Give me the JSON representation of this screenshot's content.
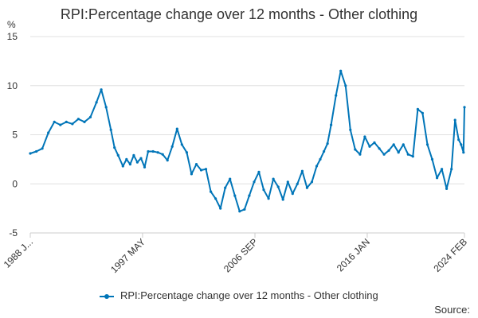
{
  "chart_data": {
    "type": "line",
    "title": "RPI:Percentage change over 12 months - Other clothing",
    "ylabel": "%",
    "ylim": [
      -5,
      15
    ],
    "yticks": [
      -5,
      0,
      5,
      10,
      15
    ],
    "xlim": [
      1988.0,
      2024.08
    ],
    "xticks": [
      {
        "x": 1988.0,
        "label": "1988 J..."
      },
      {
        "x": 1997.33,
        "label": "1997 MAY"
      },
      {
        "x": 2006.67,
        "label": "2006 SEP"
      },
      {
        "x": 2016.0,
        "label": "2016 JAN"
      },
      {
        "x": 2024.08,
        "label": "2024 FEB"
      }
    ],
    "grid": true,
    "legend_position": "bottom",
    "color": "#0075b8",
    "series": [
      {
        "name": "RPI:Percentage change over 12 months - Other clothing",
        "x": [
          1988.0,
          1988.5,
          1989.0,
          1989.5,
          1990.0,
          1990.5,
          1991.0,
          1991.5,
          1992.0,
          1992.5,
          1993.0,
          1993.5,
          1993.9,
          1994.3,
          1994.7,
          1995.0,
          1995.3,
          1995.7,
          1996.0,
          1996.3,
          1996.6,
          1996.9,
          1997.2,
          1997.5,
          1997.8,
          1998.2,
          1998.6,
          1999.0,
          1999.4,
          1999.8,
          2000.2,
          2000.6,
          2001.0,
          2001.4,
          2001.8,
          2002.2,
          2002.6,
          2003.0,
          2003.4,
          2003.8,
          2004.2,
          2004.6,
          2005.0,
          2005.4,
          2005.8,
          2006.2,
          2006.6,
          2007.0,
          2007.4,
          2007.8,
          2008.2,
          2008.6,
          2009.0,
          2009.4,
          2009.8,
          2010.2,
          2010.6,
          2011.0,
          2011.4,
          2011.8,
          2012.1,
          2012.4,
          2012.7,
          2013.0,
          2013.4,
          2013.8,
          2014.2,
          2014.6,
          2015.0,
          2015.4,
          2015.8,
          2016.2,
          2016.6,
          2017.0,
          2017.4,
          2017.8,
          2018.2,
          2018.6,
          2019.0,
          2019.4,
          2019.8,
          2020.2,
          2020.6,
          2021.0,
          2021.4,
          2021.8,
          2022.2,
          2022.6,
          2023.0,
          2023.3,
          2023.6,
          2023.8,
          2024.0,
          2024.08
        ],
        "values": [
          3.1,
          3.3,
          3.6,
          5.2,
          6.3,
          6.0,
          6.3,
          6.1,
          6.6,
          6.3,
          6.8,
          8.3,
          9.6,
          7.8,
          5.5,
          3.7,
          2.9,
          1.8,
          2.5,
          2.0,
          2.9,
          2.2,
          2.6,
          1.7,
          3.3,
          3.3,
          3.2,
          3.0,
          2.4,
          3.8,
          5.6,
          4.0,
          3.2,
          1.0,
          2.0,
          1.4,
          1.5,
          -0.8,
          -1.5,
          -2.5,
          -0.4,
          0.5,
          -1.2,
          -2.8,
          -2.6,
          -1.2,
          0.2,
          1.2,
          -0.6,
          -1.5,
          0.5,
          -0.3,
          -1.6,
          0.2,
          -1.0,
          0.0,
          1.3,
          -0.4,
          0.2,
          1.8,
          2.5,
          3.3,
          4.1,
          6.0,
          9.0,
          11.5,
          10.0,
          5.5,
          3.5,
          3.0,
          4.8,
          3.8,
          4.2,
          3.6,
          3.0,
          3.4,
          4.0,
          3.2,
          4.0,
          3.0,
          2.8,
          7.6,
          7.2,
          4.0,
          2.5,
          0.6,
          1.5,
          -0.5,
          1.5,
          6.5,
          4.5,
          4.0,
          3.2,
          7.8
        ]
      }
    ],
    "source": "Source:"
  }
}
